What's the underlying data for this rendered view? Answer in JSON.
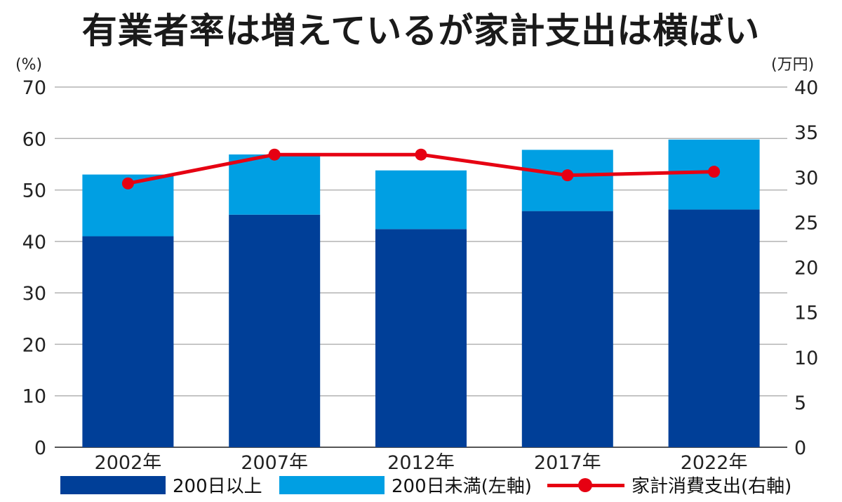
{
  "title": "有業者率は増えているが家計支出は横ばい",
  "colors": {
    "dark_blue": "#003f98",
    "light_blue": "#009fe3",
    "red": "#e60012",
    "grid": "#b3b3b3"
  },
  "chart_data": {
    "type": "bar",
    "stacked": true,
    "categories": [
      "2002年",
      "2007年",
      "2012年",
      "2017年",
      "2022年"
    ],
    "series": [
      {
        "name": "200日以上",
        "values": [
          41.0,
          45.2,
          42.4,
          45.9,
          46.2
        ],
        "axis": "left",
        "color": "#003f98"
      },
      {
        "name": "200日未満(左軸)",
        "values": [
          12.0,
          11.7,
          11.4,
          11.9,
          13.6
        ],
        "axis": "left",
        "color": "#009fe3"
      },
      {
        "name": "家計消費支出(右軸)",
        "type": "line",
        "values": [
          29.3,
          32.5,
          32.5,
          30.2,
          30.6
        ],
        "axis": "right",
        "color": "#e60012"
      }
    ],
    "y_left": {
      "unit": "(%)",
      "ticks": [
        "0",
        "10",
        "20",
        "30",
        "40",
        "50",
        "60",
        "70"
      ],
      "lim": [
        0,
        70
      ]
    },
    "y_right": {
      "unit": "(万円)",
      "ticks": [
        "0",
        "5",
        "10",
        "15",
        "20",
        "25",
        "30",
        "35",
        "40"
      ],
      "lim": [
        0,
        40
      ]
    },
    "grid": true,
    "legend_position": "bottom"
  },
  "legend": {
    "item1": "200日以上",
    "item2": "200日未満(左軸)",
    "item3": "家計消費支出(右軸)"
  }
}
